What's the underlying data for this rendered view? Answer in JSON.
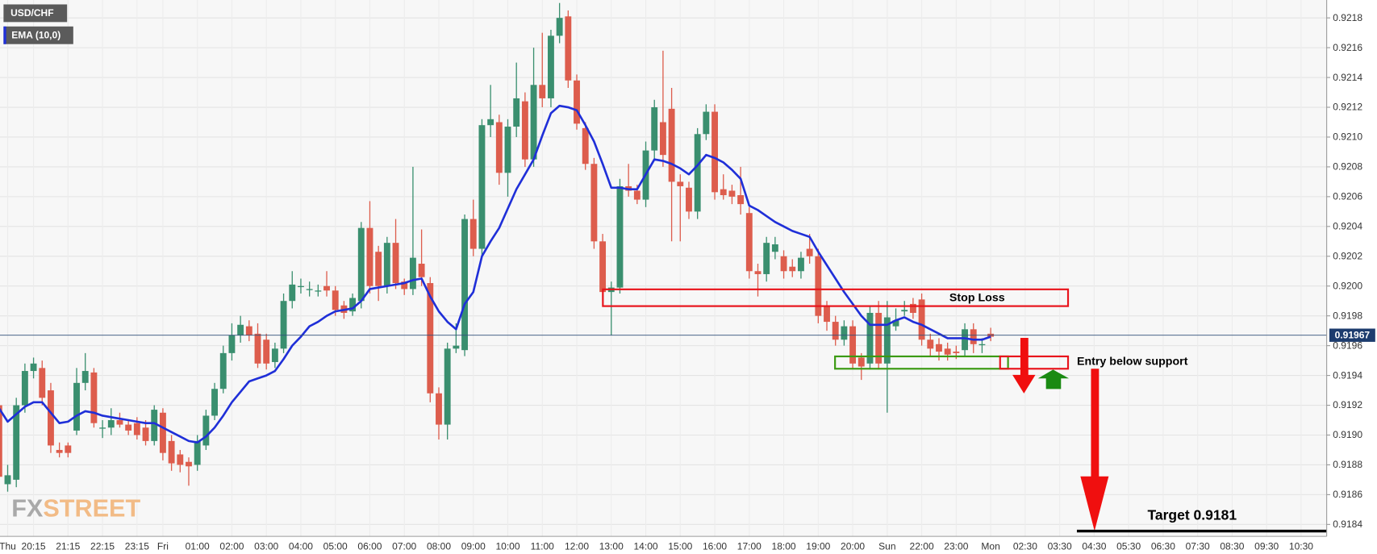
{
  "chart_data": {
    "type": "candlestick",
    "symbol": "USD/CHF",
    "up_color": "#3a8f6f",
    "down_color": "#dd5d4d",
    "categories": [
      null,
      "Thu",
      null,
      null,
      "20:15",
      null,
      null,
      null,
      "21:15",
      null,
      null,
      null,
      "22:15",
      null,
      null,
      null,
      "23:15",
      null,
      null,
      "Fri",
      null,
      null,
      null,
      "01:00",
      null,
      null,
      null,
      "02:00",
      null,
      null,
      null,
      "03:00",
      null,
      null,
      null,
      "04:00",
      null,
      null,
      null,
      "05:00",
      null,
      null,
      null,
      "06:00",
      null,
      null,
      null,
      "07:00",
      null,
      null,
      null,
      "08:00",
      null,
      null,
      null,
      "09:00",
      null,
      null,
      null,
      "10:00",
      null,
      null,
      null,
      "11:00",
      null,
      null,
      null,
      "12:00",
      null,
      null,
      null,
      "13:00",
      null,
      null,
      null,
      "14:00",
      null,
      null,
      null,
      "15:00",
      null,
      null,
      null,
      "16:00",
      null,
      null,
      null,
      "17:00",
      null,
      null,
      null,
      "18:00",
      null,
      null,
      null,
      "19:00",
      null,
      null,
      null,
      "20:00",
      null,
      null,
      null,
      "Sun",
      null,
      null,
      null,
      "22:00",
      null,
      null,
      null,
      "23:00",
      null,
      null,
      null,
      "Mon",
      null,
      null,
      null,
      "02:30",
      null,
      null,
      null,
      "03:30",
      null,
      null,
      null,
      "04:30",
      null,
      null,
      null,
      "05:30",
      null,
      null,
      null,
      "06:30",
      null,
      null,
      null,
      "07:30",
      null,
      null,
      null,
      "08:30",
      null,
      null,
      null,
      "09:30",
      null,
      null,
      null,
      "10:30"
    ],
    "open": [
      0.9192,
      0.91867,
      0.9187,
      0.9192,
      0.91943,
      0.91945,
      0.9193,
      0.9189,
      0.91893,
      0.91903,
      0.91935,
      0.91942,
      0.91905,
      0.91905,
      0.9191,
      0.91907,
      0.91908,
      0.91905,
      0.91896,
      0.91915,
      0.91896,
      0.91887,
      0.91882,
      0.9188,
      0.91893,
      0.91913,
      0.91931,
      0.91955,
      0.91967,
      0.91973,
      0.91968,
      0.91964,
      0.91949,
      0.91958,
      0.9199,
      0.92,
      0.91998,
      0.91997,
      0.92,
      0.91997,
      0.91987,
      0.91983,
      0.9199,
      0.92039,
      0.92023,
      0.92,
      0.92029,
      0.92003,
      0.91998,
      0.92015,
      0.92002,
      0.91928,
      0.91907,
      0.91958,
      0.91957,
      0.92045,
      0.92025,
      0.92108,
      0.9211,
      0.92076,
      0.92107,
      0.92124,
      0.92085,
      0.92135,
      0.92126,
      0.92168,
      0.92181,
      0.92138,
      0.92106,
      0.92082,
      0.9203,
      0.91996,
      0.91999,
      0.92067,
      0.92064,
      0.92058,
      0.92091,
      0.9211,
      0.92119,
      0.9207,
      0.92066,
      0.9205,
      0.92102,
      0.92117,
      0.92065,
      0.92064,
      0.92061,
      0.92049,
      0.9201,
      0.92008,
      0.92023,
      0.9202,
      0.92013,
      0.9201,
      0.92025,
      0.9202,
      0.91987,
      0.91976,
      0.91964,
      0.91973,
      0.91952,
      0.91948,
      0.91982,
      0.91948,
      0.91973,
      0.91983,
      0.91988,
      0.91991,
      0.91964,
      0.91961,
      0.91958,
      0.91956,
      0.91957,
      0.91971,
      0.91961,
      0.91968,
      null,
      null,
      null,
      null,
      null,
      null,
      null,
      null,
      null,
      null,
      null,
      null,
      null,
      null,
      null,
      null,
      null,
      null,
      null,
      null,
      null,
      null,
      null,
      null,
      null,
      null,
      null,
      null,
      null,
      null,
      null,
      null,
      null,
      null,
      null,
      null
    ],
    "high": [
      0.91925,
      0.9188,
      0.91925,
      0.91948,
      0.91952,
      0.9195,
      0.91935,
      0.91895,
      0.91895,
      0.91945,
      0.91955,
      0.91945,
      0.9191,
      0.91918,
      0.91915,
      0.9191,
      0.91912,
      0.9191,
      0.9192,
      0.91918,
      0.919,
      0.9189,
      0.91885,
      0.919,
      0.91917,
      0.91935,
      0.9196,
      0.91975,
      0.9198,
      0.91977,
      0.91975,
      0.91968,
      0.91962,
      0.91995,
      0.9201,
      0.92005,
      0.92003,
      0.92001,
      0.9201,
      0.92,
      0.9199,
      0.91995,
      0.92043,
      0.92057,
      0.92027,
      0.92033,
      0.92045,
      0.92005,
      0.9208,
      0.92038,
      0.92006,
      0.91932,
      0.91962,
      0.91975,
      0.92048,
      0.92058,
      0.92112,
      0.92135,
      0.92115,
      0.92112,
      0.9215,
      0.9213,
      0.9216,
      0.9217,
      0.92172,
      0.9219,
      0.92185,
      0.92142,
      0.9211,
      0.92086,
      0.92035,
      0.92003,
      0.92072,
      0.92082,
      0.92068,
      0.92097,
      0.92125,
      0.92158,
      0.92133,
      0.92075,
      0.9207,
      0.92106,
      0.92122,
      0.92122,
      0.92075,
      0.92068,
      0.9208,
      0.92053,
      0.92015,
      0.92033,
      0.92033,
      0.92024,
      0.92018,
      0.92023,
      0.92035,
      0.92025,
      0.9199,
      0.9198,
      0.91977,
      0.91977,
      0.91955,
      0.91987,
      0.9199,
      0.9199,
      0.91985,
      0.9199,
      0.91992,
      0.91995,
      0.91968,
      0.91965,
      0.91962,
      0.9196,
      0.91975,
      0.91975,
      0.91965,
      0.91972,
      null,
      null,
      null,
      null,
      null,
      null,
      null,
      null,
      null,
      null,
      null,
      null,
      null,
      null,
      null,
      null,
      null,
      null,
      null,
      null,
      null,
      null,
      null,
      null,
      null,
      null,
      null,
      null,
      null,
      null,
      null,
      null,
      null,
      null,
      null,
      null
    ],
    "low": [
      0.91865,
      0.91862,
      0.91865,
      0.91915,
      0.91938,
      0.9192,
      0.91888,
      0.91885,
      0.91885,
      0.919,
      0.9193,
      0.91905,
      0.91898,
      0.919,
      0.91905,
      0.919,
      0.91897,
      0.91893,
      0.91893,
      0.91883,
      0.91876,
      0.91875,
      0.91866,
      0.91876,
      0.9189,
      0.9191,
      0.91928,
      0.9195,
      0.91962,
      0.91963,
      0.91945,
      0.91944,
      0.91945,
      0.91955,
      0.91985,
      0.91995,
      0.91993,
      0.91993,
      0.91993,
      0.9198,
      0.91978,
      0.9198,
      0.91985,
      0.91995,
      0.9199,
      0.91995,
      0.91998,
      0.91994,
      0.91994,
      0.92,
      0.91922,
      0.91897,
      0.91897,
      0.91955,
      0.91953,
      0.9202,
      0.9202,
      0.921,
      0.92068,
      0.9206,
      0.921,
      0.9208,
      0.9208,
      0.9212,
      0.9212,
      0.92163,
      0.92133,
      0.92105,
      0.92078,
      0.92025,
      0.9199,
      0.91967,
      0.91995,
      0.9206,
      0.92055,
      0.92053,
      0.92085,
      0.9208,
      0.9203,
      0.9203,
      0.92045,
      0.92045,
      0.92098,
      0.92058,
      0.92058,
      0.92055,
      0.92048,
      0.92005,
      0.91993,
      0.92003,
      0.92018,
      0.92005,
      0.92006,
      0.92005,
      0.92015,
      0.91975,
      0.9197,
      0.9196,
      0.9196,
      0.91944,
      0.91937,
      0.91944,
      0.91944,
      0.91915,
      0.9197,
      0.9198,
      0.91978,
      0.9196,
      0.91953,
      0.9195,
      0.9195,
      0.91951,
      0.91953,
      0.91955,
      0.91955,
      0.91963,
      null,
      null,
      null,
      null,
      null,
      null,
      null,
      null,
      null,
      null,
      null,
      null,
      null,
      null,
      null,
      null,
      null,
      null,
      null,
      null,
      null,
      null,
      null,
      null,
      null,
      null,
      null,
      null,
      null,
      null,
      null,
      null,
      null,
      null,
      null,
      null
    ],
    "close": [
      0.91872,
      0.91873,
      0.9192,
      0.91943,
      0.91948,
      0.91925,
      0.91893,
      0.91888,
      0.91888,
      0.91935,
      0.91943,
      0.91908,
      0.91905,
      0.9191,
      0.91907,
      0.91903,
      0.919,
      0.91896,
      0.91917,
      0.91888,
      0.91881,
      0.9188,
      0.91879,
      0.91896,
      0.91913,
      0.91931,
      0.91955,
      0.91967,
      0.91974,
      0.91967,
      0.91948,
      0.91948,
      0.91958,
      0.9199,
      0.92001,
      0.92,
      0.91998,
      0.91997,
      0.91997,
      0.91984,
      0.91982,
      0.91992,
      0.92039,
      0.92,
      0.92,
      0.92029,
      0.92002,
      0.91998,
      0.92019,
      0.92006,
      0.91928,
      0.91907,
      0.91958,
      0.9196,
      0.92045,
      0.92025,
      0.92108,
      0.92112,
      0.92076,
      0.92107,
      0.92126,
      0.92085,
      0.92135,
      0.92126,
      0.92168,
      0.9218,
      0.92138,
      0.92109,
      0.92082,
      0.9203,
      0.91996,
      0.91999,
      0.92067,
      0.92064,
      0.92058,
      0.92091,
      0.9212,
      0.92088,
      0.9207,
      0.92067,
      0.9205,
      0.92102,
      0.92117,
      0.92063,
      0.92061,
      0.9206,
      0.92055,
      0.9201,
      0.92008,
      0.92029,
      0.92028,
      0.9201,
      0.9201,
      0.92019,
      0.9202,
      0.9198,
      0.91976,
      0.91964,
      0.91973,
      0.91948,
      0.91946,
      0.91982,
      0.91948,
      0.91979,
      0.91977,
      0.91984,
      0.91982,
      0.91964,
      0.91958,
      0.91956,
      0.91954,
      0.91955,
      0.91971,
      0.91961,
      0.91961,
      0.91966,
      null,
      null,
      null,
      null,
      null,
      null,
      null,
      null,
      null,
      null,
      null,
      null,
      null,
      null,
      null,
      null,
      null,
      null,
      null,
      null,
      null,
      null,
      null,
      null,
      null,
      null,
      null,
      null,
      null,
      null,
      null,
      null,
      null,
      null,
      null,
      null
    ],
    "ema": {
      "name": "EMA (10,0)",
      "color": "#1f2fd8",
      "values": [
        0.91918,
        0.91909,
        0.91914,
        0.91919,
        0.91922,
        0.91922,
        0.91915,
        0.91908,
        0.91909,
        0.91913,
        0.91916,
        0.91915,
        0.91913,
        0.91912,
        0.91911,
        0.9191,
        0.91909,
        0.91908,
        0.91908,
        0.91905,
        0.91902,
        0.91899,
        0.91896,
        0.91895,
        0.91899,
        0.91905,
        0.91913,
        0.91922,
        0.91929,
        0.91936,
        0.91938,
        0.9194,
        0.91943,
        0.91951,
        0.9196,
        0.91966,
        0.91973,
        0.91976,
        0.9198,
        0.91983,
        0.91984,
        0.91985,
        0.9199,
        0.91998,
        0.91999,
        0.92,
        0.92001,
        0.92002,
        0.92004,
        0.92005,
        0.91993,
        0.91983,
        0.91976,
        0.91971,
        0.91988,
        0.91996,
        0.9202,
        0.9203,
        0.92039,
        0.92052,
        0.92065,
        0.92075,
        0.92085,
        0.92101,
        0.92116,
        0.92121,
        0.9212,
        0.92118,
        0.92108,
        0.92097,
        0.92082,
        0.92066,
        0.92066,
        0.92065,
        0.92065,
        0.92075,
        0.92085,
        0.92084,
        0.92082,
        0.92079,
        0.92075,
        0.92081,
        0.92088,
        0.92086,
        0.92083,
        0.92078,
        0.92072,
        0.92054,
        0.92051,
        0.92047,
        0.92043,
        0.9204,
        0.92037,
        0.92035,
        0.92033,
        0.92023,
        0.92014,
        0.92005,
        0.91996,
        0.91988,
        0.9198,
        0.91974,
        0.91974,
        0.91974,
        0.91977,
        0.91979,
        0.91976,
        0.91974,
        0.91971,
        0.91968,
        0.91965,
        0.91965,
        0.91965,
        0.91964,
        0.91964,
        0.91966,
        null,
        null,
        null,
        null,
        null,
        null,
        null,
        null,
        null,
        null,
        null,
        null,
        null,
        null,
        null,
        null,
        null,
        null,
        null,
        null,
        null,
        null,
        null,
        null,
        null,
        null,
        null,
        null,
        null,
        null,
        null,
        null,
        null,
        null,
        null,
        null
      ]
    },
    "ylim": [
      0.91832,
      0.92192
    ],
    "yticks": [
      0.9184,
      0.9186,
      0.9188,
      {
        "value": 0.919,
        "label": "0.9190"
      },
      0.9192,
      0.9194,
      0.9196,
      0.9198,
      {
        "value": 0.92,
        "label": "0.9200"
      },
      0.9202,
      0.9204,
      0.9206,
      0.9208,
      {
        "value": 0.921,
        "label": "0.9210"
      },
      0.9212,
      0.9214,
      0.9216,
      0.9218
    ],
    "grid": true,
    "last_price": 0.91967,
    "annotations": {
      "stop_loss": "Stop Loss",
      "entry": "Entry below support",
      "target": "Target 0.9181"
    },
    "watermark": [
      "FX",
      "STREET"
    ]
  }
}
